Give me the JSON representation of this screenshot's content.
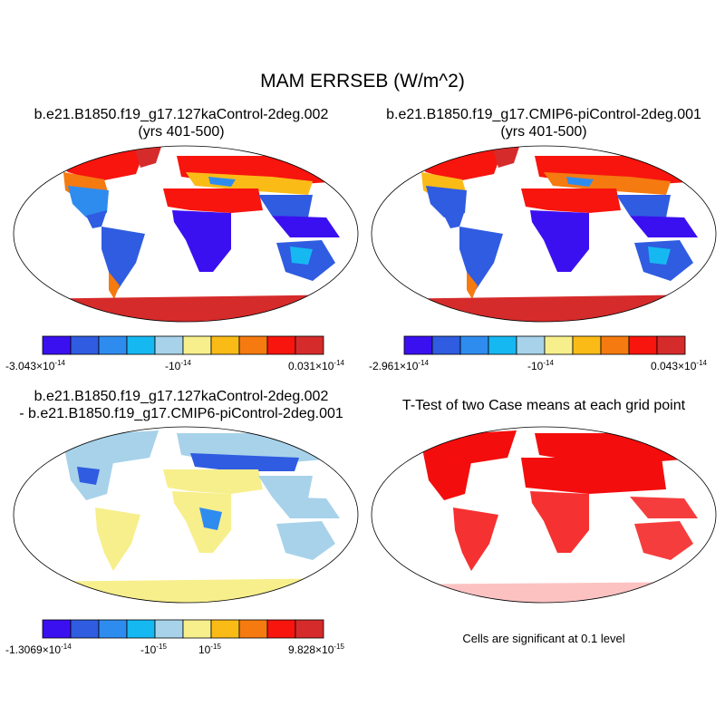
{
  "figure": {
    "title": "MAM ERRSEB (W/m^2)"
  },
  "panels": {
    "top_left": {
      "title_line1": "b.e21.B1850.f19_g17.127kaControl-2deg.002",
      "title_line2": "(yrs 401-500)",
      "colorbar": {
        "min_mant": "-3.043",
        "min_exp": "-14",
        "mid_mant": "-10",
        "mid_exp": "-14",
        "max_mant": "0.031",
        "max_exp": "-14",
        "times": "×",
        "ten": "10"
      }
    },
    "top_right": {
      "title_line1": "b.e21.B1850.f19_g17.CMIP6-piControl-2deg.001",
      "title_line2": "(yrs 401-500)",
      "colorbar": {
        "min_mant": "-2.961",
        "min_exp": "-14",
        "mid_mant": "-10",
        "mid_exp": "-14",
        "max_mant": "0.043",
        "max_exp": "-14",
        "times": "×",
        "ten": "10"
      }
    },
    "bottom_left": {
      "title_line1": "b.e21.B1850.f19_g17.127kaControl-2deg.002",
      "title_line2": "- b.e21.B1850.f19_g17.CMIP6-piControl-2deg.001",
      "colorbar": {
        "min_mant": "-1.3069",
        "min_exp": "-14",
        "mid1_mant": "-10",
        "mid1_exp": "-15",
        "mid2_mant": "10",
        "mid2_exp": "-15",
        "max_mant": "9.828",
        "max_exp": "-15",
        "times": "×",
        "ten": "10"
      }
    },
    "bottom_right": {
      "title": "T-Test of two Case means at each grid point",
      "note": "Cells are significant at 0.1 level"
    }
  },
  "colors": {
    "scale": [
      "#3b10f0",
      "#2f5ce0",
      "#2f8cef",
      "#16b8f2",
      "#a7d2ea",
      "#f7ef8c",
      "#fbbb17",
      "#f57a10",
      "#f7150e",
      "#d62b2b"
    ],
    "ocean": "#ffffff",
    "significant": "#f40d0d"
  }
}
